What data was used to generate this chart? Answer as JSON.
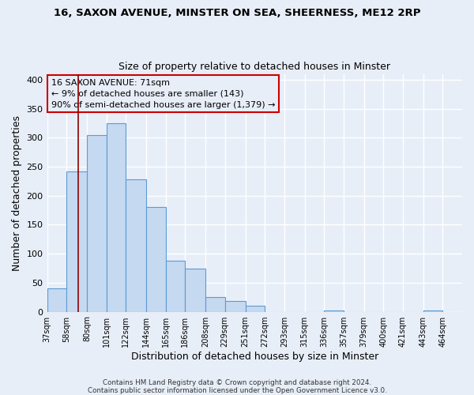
{
  "title1": "16, SAXON AVENUE, MINSTER ON SEA, SHEERNESS, ME12 2RP",
  "title2": "Size of property relative to detached houses in Minster",
  "xlabel": "Distribution of detached houses by size in Minster",
  "ylabel": "Number of detached properties",
  "bar_color": "#c5d9f0",
  "bar_edge_color": "#5b9bd5",
  "bar_heights": [
    40,
    242,
    305,
    325,
    228,
    180,
    88,
    75,
    25,
    18,
    10,
    0,
    0,
    0,
    2,
    0,
    0,
    0,
    0,
    2
  ],
  "bin_edges": [
    37,
    58,
    80,
    101,
    122,
    144,
    165,
    186,
    208,
    229,
    251,
    272,
    293,
    315,
    336,
    357,
    379,
    400,
    421,
    443,
    464
  ],
  "xtick_labels": [
    "37sqm",
    "58sqm",
    "80sqm",
    "101sqm",
    "122sqm",
    "144sqm",
    "165sqm",
    "186sqm",
    "208sqm",
    "229sqm",
    "251sqm",
    "272sqm",
    "293sqm",
    "315sqm",
    "336sqm",
    "357sqm",
    "379sqm",
    "400sqm",
    "421sqm",
    "443sqm",
    "464sqm"
  ],
  "ylim": [
    0,
    410
  ],
  "yticks": [
    0,
    50,
    100,
    150,
    200,
    250,
    300,
    350,
    400
  ],
  "red_line_x": 71,
  "annotation_title": "16 SAXON AVENUE: 71sqm",
  "annotation_line2": "← 9% of detached houses are smaller (143)",
  "annotation_line3": "90% of semi-detached houses are larger (1,379) →",
  "background_color": "#e8eef8",
  "grid_color": "#ffffff",
  "footnote1": "Contains HM Land Registry data © Crown copyright and database right 2024.",
  "footnote2": "Contains public sector information licensed under the Open Government Licence v3.0."
}
